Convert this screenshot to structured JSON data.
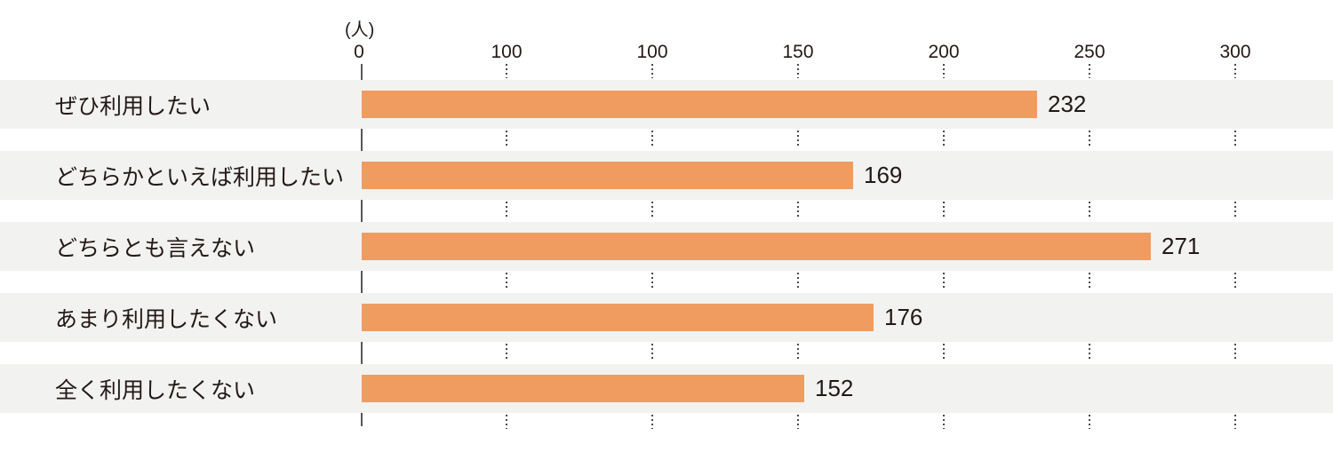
{
  "unit_label": "(人)",
  "x_axis": {
    "ticks": [
      {
        "label": "0"
      },
      {
        "label": "100"
      },
      {
        "label": "100"
      },
      {
        "label": "150"
      },
      {
        "label": "200"
      },
      {
        "label": "250"
      },
      {
        "label": "300"
      }
    ]
  },
  "chart_data": {
    "type": "bar",
    "orientation": "horizontal",
    "title": "",
    "unit": "(人)",
    "categories": [
      "ぜひ利用したい",
      "どちらかといえば利用したい",
      "どちらとも言えない",
      "あまり利用したくない",
      "全く利用したくない"
    ],
    "values": [
      232,
      169,
      271,
      176,
      152
    ],
    "value_labels": [
      "232",
      "169",
      "271",
      "176",
      "152"
    ],
    "xlim": [
      0,
      300
    ],
    "x_tick_labels": [
      "0",
      "100",
      "100",
      "150",
      "200",
      "250",
      "300"
    ],
    "gridlines": "dotted-vertical-in-gaps",
    "legend": "none",
    "value_labels_shown": true
  },
  "colors": {
    "bar": "#F09C61",
    "row_background": "#F2F2F1",
    "axis_line": "#595757",
    "gridline_dot": "#4C4948",
    "text": "#231815",
    "background": "#FFFFFF"
  }
}
